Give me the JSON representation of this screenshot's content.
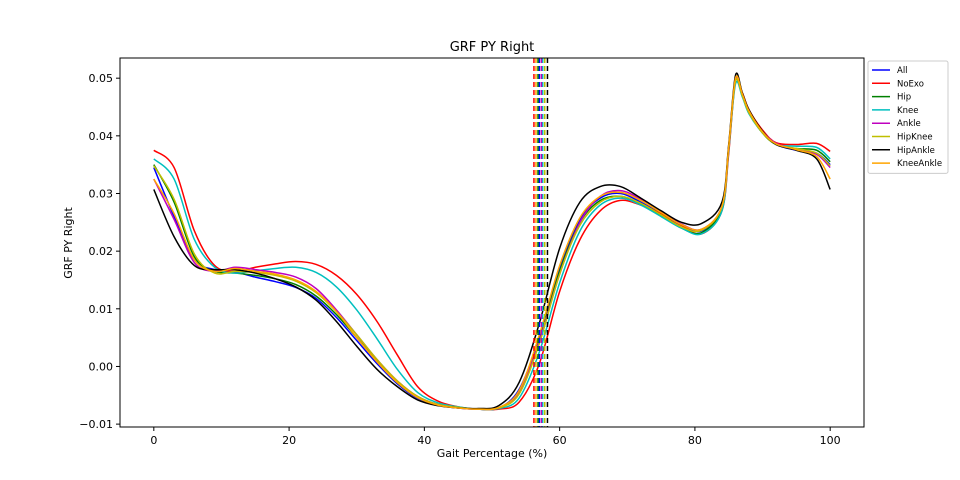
{
  "chart_data": {
    "type": "line",
    "title": "GRF PY Right",
    "xlabel": "Gait Percentage (%)",
    "ylabel": "GRF PY Right",
    "xlim": [
      -5,
      105
    ],
    "ylim": [
      -0.0105,
      0.0535
    ],
    "xticks": [
      0,
      20,
      40,
      60,
      80,
      100
    ],
    "xtick_labels": [
      "0",
      "20",
      "40",
      "60",
      "80",
      "100"
    ],
    "yticks": [
      -0.01,
      0.0,
      0.01,
      0.02,
      0.03,
      0.04,
      0.05
    ],
    "ytick_labels": [
      "−0.01",
      "0.00",
      "0.01",
      "0.02",
      "0.03",
      "0.04",
      "0.05"
    ],
    "legend_position": "outside-top-right",
    "grid": false,
    "x": [
      0,
      3,
      6,
      9,
      12,
      15,
      18,
      21,
      24,
      27,
      30,
      33,
      36,
      39,
      42,
      45,
      48,
      51,
      54,
      57,
      60,
      63,
      66,
      69,
      72,
      75,
      78,
      81,
      84,
      85,
      86,
      87,
      88,
      90,
      92,
      95,
      98,
      100
    ],
    "series": [
      {
        "name": "All",
        "color": "#0000ff",
        "toe_off": 57.0,
        "values": [
          0.0345,
          0.026,
          0.0185,
          0.0168,
          0.0164,
          0.0155,
          0.0147,
          0.0137,
          0.0118,
          0.0085,
          0.0045,
          0.0005,
          -0.003,
          -0.0055,
          -0.0067,
          -0.0072,
          -0.0074,
          -0.0072,
          -0.004,
          0.005,
          0.017,
          0.0255,
          0.0292,
          0.03,
          0.0285,
          0.0265,
          0.0245,
          0.0235,
          0.0275,
          0.038,
          0.0495,
          0.047,
          0.044,
          0.0405,
          0.0385,
          0.0375,
          0.037,
          0.035
        ]
      },
      {
        "name": "NoExo",
        "color": "#ff0000",
        "toe_off": 56.2,
        "values": [
          0.0375,
          0.0345,
          0.0235,
          0.0175,
          0.0165,
          0.0172,
          0.0178,
          0.0182,
          0.0177,
          0.0158,
          0.0125,
          0.0078,
          0.002,
          -0.0035,
          -0.006,
          -0.007,
          -0.0074,
          -0.0074,
          -0.0062,
          0.0005,
          0.013,
          0.022,
          0.027,
          0.0288,
          0.028,
          0.0265,
          0.0245,
          0.023,
          0.027,
          0.037,
          0.0495,
          0.0475,
          0.0445,
          0.041,
          0.0388,
          0.0385,
          0.0387,
          0.0373
        ]
      },
      {
        "name": "Hip",
        "color": "#008000",
        "toe_off": 56.8,
        "values": [
          0.035,
          0.0285,
          0.019,
          0.0165,
          0.0162,
          0.0158,
          0.0152,
          0.0142,
          0.0122,
          0.009,
          0.005,
          0.001,
          -0.0028,
          -0.0053,
          -0.0066,
          -0.0071,
          -0.0074,
          -0.0072,
          -0.0043,
          0.0048,
          0.0165,
          0.025,
          0.0288,
          0.0295,
          0.0282,
          0.0262,
          0.024,
          0.0232,
          0.0275,
          0.038,
          0.0495,
          0.047,
          0.044,
          0.0405,
          0.0385,
          0.0378,
          0.0375,
          0.0355
        ]
      },
      {
        "name": "Knee",
        "color": "#00bfbf",
        "toe_off": 57.5,
        "values": [
          0.036,
          0.0325,
          0.022,
          0.0172,
          0.0162,
          0.0166,
          0.017,
          0.0172,
          0.0163,
          0.0138,
          0.0098,
          0.0048,
          -0.0005,
          -0.0045,
          -0.0063,
          -0.007,
          -0.0074,
          -0.0073,
          -0.0055,
          0.0025,
          0.0145,
          0.0235,
          0.028,
          0.0292,
          0.028,
          0.026,
          0.024,
          0.023,
          0.027,
          0.0375,
          0.049,
          0.0468,
          0.0438,
          0.0405,
          0.0385,
          0.0382,
          0.038,
          0.036
        ]
      },
      {
        "name": "Ankle",
        "color": "#bf00bf",
        "toe_off": 57.3,
        "values": [
          0.0325,
          0.0255,
          0.018,
          0.0165,
          0.0172,
          0.0168,
          0.0163,
          0.0155,
          0.0135,
          0.0098,
          0.0055,
          0.0012,
          -0.0025,
          -0.0052,
          -0.0066,
          -0.0072,
          -0.0074,
          -0.0072,
          -0.0045,
          0.0045,
          0.016,
          0.025,
          0.0295,
          0.0305,
          0.029,
          0.0268,
          0.0247,
          0.0238,
          0.0278,
          0.038,
          0.0497,
          0.0472,
          0.0442,
          0.0408,
          0.0387,
          0.0376,
          0.0368,
          0.0345
        ]
      },
      {
        "name": "HipKnee",
        "color": "#bfbf00",
        "toe_off": 57.8,
        "values": [
          0.0348,
          0.029,
          0.0195,
          0.0162,
          0.0165,
          0.0163,
          0.0158,
          0.0148,
          0.0128,
          0.0095,
          0.0055,
          0.0012,
          -0.0025,
          -0.0052,
          -0.0066,
          -0.0071,
          -0.0074,
          -0.0072,
          -0.0048,
          0.004,
          0.016,
          0.0245,
          0.0285,
          0.0295,
          0.0283,
          0.0263,
          0.0242,
          0.0236,
          0.0277,
          0.038,
          0.0495,
          0.047,
          0.044,
          0.0405,
          0.0385,
          0.0378,
          0.037,
          0.0348
        ]
      },
      {
        "name": "HipAnkle",
        "color": "#000000",
        "toe_off": 58.2,
        "values": [
          0.0307,
          0.0225,
          0.0175,
          0.0168,
          0.0168,
          0.0162,
          0.0152,
          0.0138,
          0.0115,
          0.0078,
          0.0035,
          -0.0005,
          -0.0035,
          -0.0058,
          -0.0068,
          -0.0072,
          -0.0073,
          -0.0068,
          -0.0028,
          0.0075,
          0.0205,
          0.0285,
          0.0312,
          0.0312,
          0.0292,
          0.027,
          0.025,
          0.0248,
          0.0285,
          0.0385,
          0.0505,
          0.0475,
          0.0445,
          0.0408,
          0.0385,
          0.0375,
          0.036,
          0.0307
        ]
      },
      {
        "name": "KneeAnkle",
        "color": "#ffa500",
        "toe_off": 56.5,
        "values": [
          0.0325,
          0.0265,
          0.0185,
          0.0165,
          0.017,
          0.0165,
          0.016,
          0.015,
          0.013,
          0.0095,
          0.005,
          0.0008,
          -0.0028,
          -0.0054,
          -0.0067,
          -0.0072,
          -0.0074,
          -0.0071,
          -0.0042,
          0.0055,
          0.0175,
          0.0258,
          0.0295,
          0.0302,
          0.0288,
          0.0267,
          0.0246,
          0.0238,
          0.0278,
          0.0382,
          0.05,
          0.0473,
          0.0443,
          0.0407,
          0.0386,
          0.0376,
          0.0364,
          0.0325
        ]
      }
    ]
  }
}
